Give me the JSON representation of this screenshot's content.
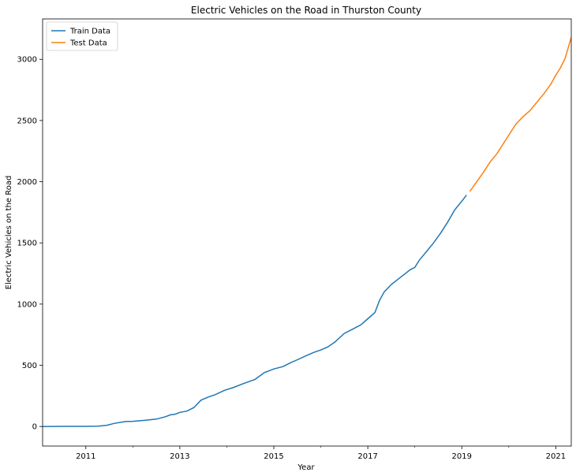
{
  "chart_data": {
    "type": "line",
    "title": "Electric Vehicles on the Road in Thurston County",
    "xlabel": "Year",
    "ylabel": "Electric Vehicles on the Road",
    "xlim": [
      2010.08,
      2021.33
    ],
    "ylim": [
      -160,
      3330
    ],
    "x_ticks": [
      2011,
      2013,
      2015,
      2017,
      2019,
      2021
    ],
    "x_tick_labels": [
      "2011",
      "2013",
      "2015",
      "2017",
      "2019",
      "2021"
    ],
    "x_minor_ticks": [
      2012,
      2014,
      2016,
      2018,
      2020
    ],
    "y_ticks": [
      0,
      500,
      1000,
      1500,
      2000,
      2500,
      3000
    ],
    "y_tick_labels": [
      "0",
      "500",
      "1000",
      "1500",
      "2000",
      "2500",
      "3000"
    ],
    "grid": false,
    "legend_position": "top-left",
    "series": [
      {
        "name": "Train Data",
        "color": "#1f77b4",
        "x": [
          2010.08,
          2010.5,
          2011.0,
          2011.25,
          2011.45,
          2011.6,
          2011.75,
          2011.85,
          2012.0,
          2012.25,
          2012.5,
          2012.7,
          2012.8,
          2012.9,
          2013.0,
          2013.15,
          2013.3,
          2013.45,
          2013.6,
          2013.75,
          2013.95,
          2014.15,
          2014.35,
          2014.6,
          2014.8,
          2015.0,
          2015.2,
          2015.35,
          2015.5,
          2015.7,
          2015.85,
          2016.0,
          2016.15,
          2016.3,
          2016.5,
          2016.7,
          2016.85,
          2017.0,
          2017.15,
          2017.25,
          2017.35,
          2017.5,
          2017.7,
          2017.9,
          2018.0,
          2018.1,
          2018.25,
          2018.4,
          2018.55,
          2018.7,
          2018.85,
          2019.0,
          2019.1
        ],
        "values": [
          0,
          1,
          1,
          2,
          10,
          25,
          35,
          40,
          42,
          50,
          60,
          80,
          95,
          100,
          115,
          125,
          155,
          215,
          240,
          260,
          295,
          320,
          350,
          385,
          440,
          470,
          490,
          520,
          545,
          580,
          605,
          625,
          650,
          690,
          760,
          800,
          830,
          880,
          930,
          1030,
          1100,
          1160,
          1220,
          1280,
          1300,
          1360,
          1430,
          1500,
          1580,
          1670,
          1770,
          1840,
          1890
        ]
      },
      {
        "name": "Test Data",
        "color": "#ff7f0e",
        "x": [
          2019.17,
          2019.3,
          2019.45,
          2019.6,
          2019.75,
          2019.9,
          2020.0,
          2020.15,
          2020.3,
          2020.45,
          2020.6,
          2020.75,
          2020.9,
          2021.0,
          2021.1,
          2021.2,
          2021.33
        ],
        "values": [
          1920,
          1990,
          2070,
          2160,
          2230,
          2320,
          2380,
          2470,
          2530,
          2580,
          2650,
          2720,
          2800,
          2870,
          2930,
          3010,
          3180
        ]
      }
    ]
  }
}
